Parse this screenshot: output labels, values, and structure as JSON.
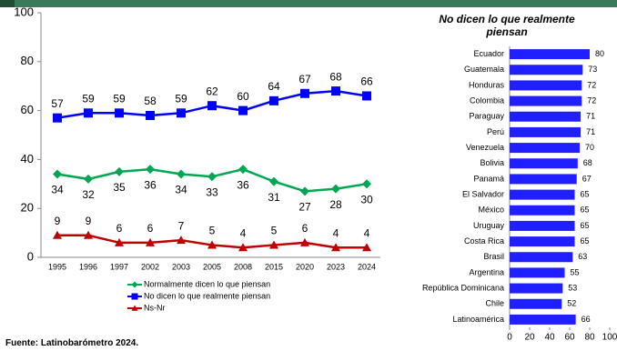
{
  "chart_data": [
    {
      "type": "line",
      "categories": [
        "1995",
        "1996",
        "1997",
        "2002",
        "2003",
        "2005",
        "2008",
        "2015",
        "2020",
        "2023",
        "2024"
      ],
      "ylim": [
        0,
        100
      ],
      "yticks": [
        0,
        20,
        40,
        60,
        80,
        100
      ],
      "series": [
        {
          "name": "Normalmente dicen lo que piensan",
          "color": "#00a651",
          "marker": "diamond",
          "values": [
            34,
            32,
            35,
            36,
            34,
            33,
            36,
            31,
            27,
            28,
            30
          ]
        },
        {
          "name": "No dicen lo que realmente piensan",
          "color": "#0000ff",
          "marker": "square",
          "values": [
            57,
            59,
            59,
            58,
            59,
            62,
            60,
            64,
            67,
            68,
            66
          ]
        },
        {
          "name": "Ns-Nr",
          "color": "#c00000",
          "marker": "triangle",
          "values": [
            9,
            9,
            6,
            6,
            7,
            5,
            4,
            5,
            6,
            4,
            4
          ]
        }
      ]
    },
    {
      "type": "hbar",
      "title": "No dicen lo que realmente piensan",
      "categories": [
        "Ecuador",
        "Guatemala",
        "Honduras",
        "Colombia",
        "Paraguay",
        "Perú",
        "Venezuela",
        "Bolivia",
        "Panamá",
        "El Salvador",
        "México",
        "Uruguay",
        "Costa Rica",
        "Brasil",
        "Argentina",
        "República Dominicana",
        "Chile",
        "Latinoamérica"
      ],
      "values": [
        80,
        73,
        72,
        72,
        71,
        71,
        70,
        68,
        67,
        65,
        65,
        65,
        65,
        63,
        55,
        53,
        52,
        66
      ],
      "color": "#1f1fff",
      "xlim": [
        0,
        100
      ],
      "xticks": [
        0,
        20,
        40,
        60,
        80,
        100
      ]
    }
  ],
  "footer": "Fuente: Latinobarómetro 2024."
}
